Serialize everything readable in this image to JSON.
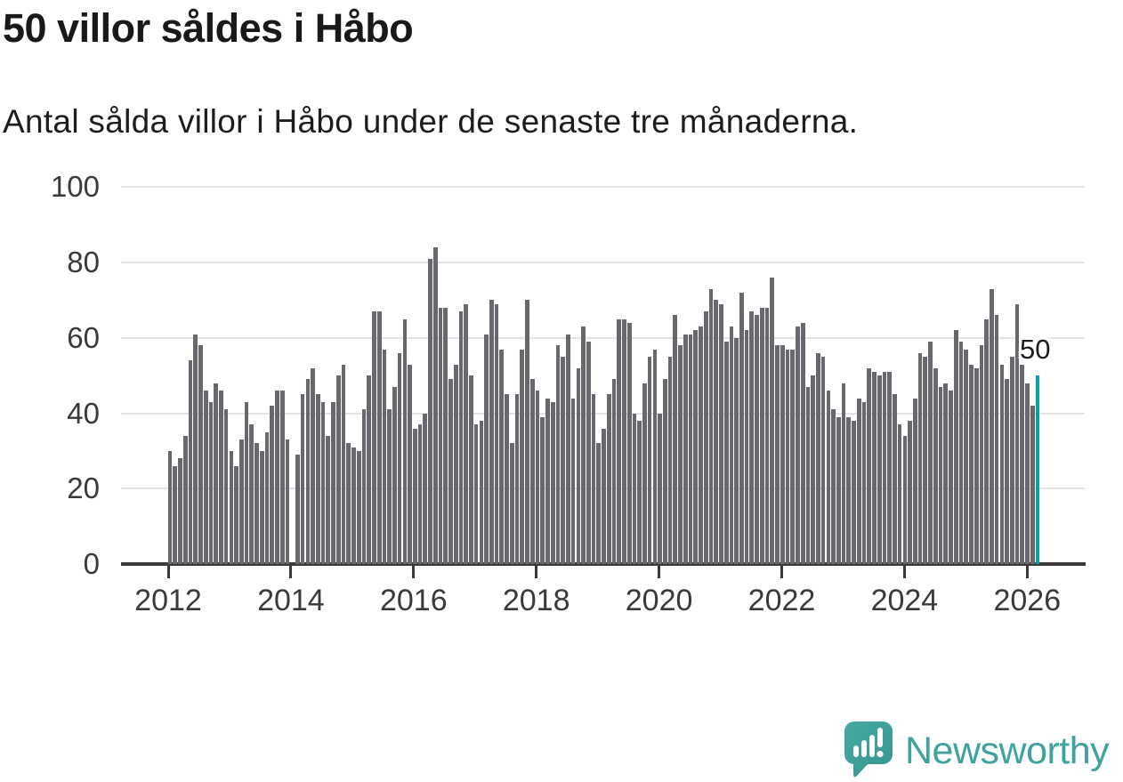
{
  "title": "50 villor såldes i Håbo",
  "subtitle": "Antal sålda villor i Håbo under de senaste tre månaderna.",
  "annotation": {
    "label": "50"
  },
  "logo": {
    "text": "Newsworthy"
  },
  "colors": {
    "bar": "#68686f",
    "highlight_bar": "#0ba0a2",
    "logo_teal": "#3ea39d",
    "axis_text": "#3a3a3a",
    "gridline": "#e4e4e4",
    "axis_line": "#3a3a3a",
    "title_text": "#191919",
    "annotation_text": "#1d1d1d"
  },
  "chart_data": {
    "type": "bar",
    "title": "50 villor såldes i Håbo",
    "subtitle": "Antal sålda villor i Håbo under de senaste tre månaderna.",
    "x_start": "2012-01",
    "x_interval": "month",
    "x_ticks": [
      2012,
      2014,
      2016,
      2018,
      2020,
      2022,
      2024,
      2026
    ],
    "y_ticks": [
      0,
      20,
      40,
      60,
      80,
      100
    ],
    "ylim": [
      0,
      100
    ],
    "grid": "horizontal",
    "legend": "none",
    "highlight_last_bar": true,
    "highlight_value": 50,
    "values": [
      30,
      26,
      28,
      34,
      54,
      61,
      58,
      46,
      43,
      48,
      46,
      41,
      30,
      26,
      33,
      43,
      37,
      32,
      30,
      35,
      42,
      46,
      46,
      33,
      0,
      29,
      45,
      49,
      52,
      45,
      43,
      34,
      43,
      50,
      53,
      32,
      31,
      30,
      41,
      50,
      67,
      67,
      57,
      41,
      47,
      56,
      65,
      53,
      36,
      37,
      40,
      81,
      84,
      68,
      68,
      49,
      53,
      67,
      69,
      50,
      37,
      38,
      61,
      70,
      69,
      57,
      45,
      32,
      45,
      57,
      70,
      49,
      46,
      39,
      44,
      43,
      58,
      55,
      61,
      44,
      52,
      63,
      59,
      45,
      32,
      36,
      45,
      49,
      65,
      65,
      64,
      40,
      38,
      48,
      55,
      57,
      40,
      49,
      55,
      66,
      58,
      61,
      61,
      62,
      63,
      67,
      73,
      70,
      69,
      59,
      63,
      60,
      72,
      62,
      67,
      66,
      68,
      68,
      76,
      58,
      58,
      57,
      57,
      63,
      64,
      47,
      50,
      56,
      55,
      46,
      41,
      39,
      48,
      39,
      38,
      44,
      43,
      52,
      51,
      50,
      51,
      51,
      45,
      37,
      34,
      38,
      44,
      56,
      55,
      59,
      52,
      47,
      48,
      46,
      62,
      59,
      57,
      53,
      52,
      58,
      65,
      73,
      66,
      53,
      49,
      55,
      69,
      53,
      48,
      42,
      50
    ]
  }
}
